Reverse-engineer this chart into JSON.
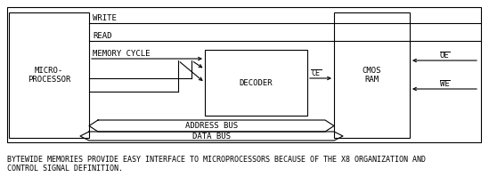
{
  "bg_color": "#ffffff",
  "micro_label1": "MICRO-",
  "micro_label2": "PROCESSOR",
  "decoder_label": "DECODER",
  "cmos_label1": "CMOS",
  "cmos_label2": "RAM",
  "ce_label": "CE",
  "oe_label": "OE",
  "we_label": "WE",
  "addr_label": "ADDRESS BUS",
  "data_label": "DATA BUS",
  "write_label": "WRITE",
  "read_label": "READ",
  "mc_label": "MEMORY CYCLE",
  "caption": "BYTEWIDE MEMORIES PROVIDE EASY INTERFACE TO MICROPROCESSORS BECAUSE OF THE X8 ORGANIZATION AND\nCONTROL SIGNAL DEFINITION.",
  "font_size": 6.5,
  "caption_font_size": 6.0,
  "lw": 0.8
}
